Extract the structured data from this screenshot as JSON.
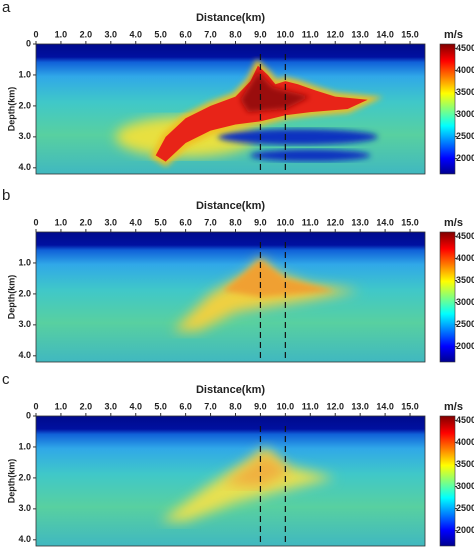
{
  "chart_data": [
    {
      "type": "heatmap",
      "panel": "a",
      "xlabel": "Distance(km)",
      "ylabel": "Depth(km)",
      "xlim": [
        0,
        15.6
      ],
      "xticks": [
        0,
        {
          "value": 1,
          "label": "1.0"
        },
        {
          "value": 2,
          "label": "2.0"
        },
        {
          "value": 3,
          "label": "3.0"
        },
        {
          "value": 4,
          "label": "4.0"
        },
        {
          "value": 5,
          "label": "5.0"
        },
        {
          "value": 6,
          "label": "6.0"
        },
        {
          "value": 7,
          "label": "7.0"
        },
        {
          "value": 8,
          "label": "8.0"
        },
        {
          "value": 9,
          "label": "9.0"
        },
        {
          "value": 10,
          "label": "10.0"
        },
        {
          "value": 11,
          "label": "11.0"
        },
        {
          "value": 12,
          "label": "12.0"
        },
        {
          "value": 13,
          "label": "13.0"
        },
        {
          "value": 14,
          "label": "14.0"
        },
        {
          "value": 15,
          "label": "15.0"
        }
      ],
      "ylim": [
        0,
        4.2
      ],
      "yticks": [
        0,
        {
          "value": 1,
          "label": "1.0"
        },
        {
          "value": 2,
          "label": "2.0"
        },
        {
          "value": 3,
          "label": "3.0"
        },
        {
          "value": 4,
          "label": "4.0"
        }
      ],
      "colorbar": {
        "title": "m/s",
        "lim": [
          1650,
          4600
        ],
        "ticks": [
          2000,
          2500,
          3000,
          3500,
          4000,
          4500
        ]
      }
    },
    {
      "type": "heatmap",
      "panel": "b",
      "xlabel": "Distance(km)",
      "ylabel": "Depth(km)",
      "xlim": [
        0,
        15.6
      ],
      "xticks": [
        0,
        {
          "value": 1,
          "label": "1.0"
        },
        {
          "value": 2,
          "label": "2.0"
        },
        {
          "value": 3,
          "label": "3.0"
        },
        {
          "value": 4,
          "label": "4.0"
        },
        {
          "value": 5,
          "label": "5.0"
        },
        {
          "value": 6,
          "label": "6.0"
        },
        {
          "value": 7,
          "label": "7.0"
        },
        {
          "value": 8,
          "label": "8.0"
        },
        {
          "value": 9,
          "label": "9.0"
        },
        {
          "value": 10,
          "label": "10.0"
        },
        {
          "value": 11,
          "label": "11.0"
        },
        {
          "value": 12,
          "label": "12.0"
        },
        {
          "value": 13,
          "label": "13.0"
        },
        {
          "value": 14,
          "label": "14.0"
        },
        {
          "value": 15,
          "label": "15.0"
        }
      ],
      "ylim": [
        0,
        4.2
      ],
      "yticks": [
        {
          "value": 1,
          "label": "1.0"
        },
        {
          "value": 2,
          "label": "2.0"
        },
        {
          "value": 3,
          "label": "3.0"
        },
        {
          "value": 4,
          "label": "4.0"
        }
      ],
      "colorbar": {
        "title": "m/s",
        "lim": [
          1650,
          4600
        ],
        "ticks": [
          2000,
          2500,
          3000,
          3500,
          4000,
          4500
        ]
      }
    },
    {
      "type": "heatmap",
      "panel": "c",
      "xlabel": "Distance(km)",
      "ylabel": "Depth(km)",
      "xlim": [
        0,
        15.6
      ],
      "xticks": [
        0,
        {
          "value": 1,
          "label": "1.0"
        },
        {
          "value": 2,
          "label": "2.0"
        },
        {
          "value": 3,
          "label": "3.0"
        },
        {
          "value": 4,
          "label": "4.0"
        },
        {
          "value": 5,
          "label": "5.0"
        },
        {
          "value": 6,
          "label": "6.0"
        },
        {
          "value": 7,
          "label": "7.0"
        },
        {
          "value": 8,
          "label": "8.0"
        },
        {
          "value": 9,
          "label": "9.0"
        },
        {
          "value": 10,
          "label": "10.0"
        },
        {
          "value": 11,
          "label": "11.0"
        },
        {
          "value": 12,
          "label": "12.0"
        },
        {
          "value": 13,
          "label": "13.0"
        },
        {
          "value": 14,
          "label": "14.0"
        },
        {
          "value": 15,
          "label": "15.0"
        }
      ],
      "ylim": [
        0,
        4.2
      ],
      "yticks": [
        0,
        {
          "value": 1,
          "label": "1.0"
        },
        {
          "value": 2,
          "label": "2.0"
        },
        {
          "value": 3,
          "label": "3.0"
        },
        {
          "value": 4,
          "label": "4.0"
        }
      ],
      "colorbar": {
        "title": "m/s",
        "lim": [
          1650,
          4600
        ],
        "ticks": [
          2000,
          2500,
          3000,
          3500,
          4000,
          4500
        ]
      }
    }
  ]
}
